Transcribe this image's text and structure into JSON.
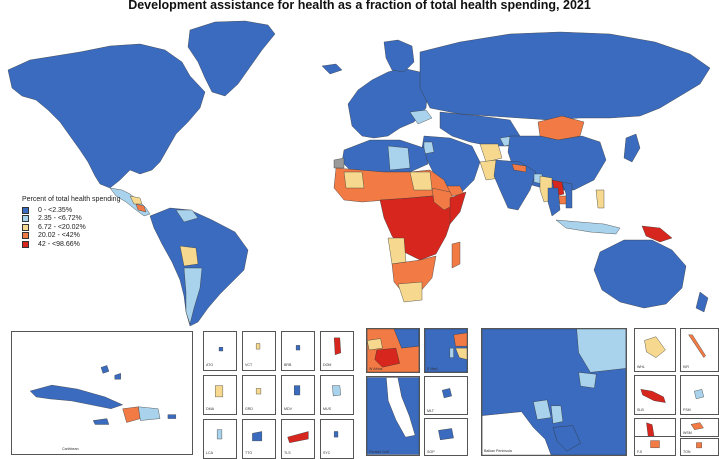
{
  "title": "Development assistance for health as a fraction of total health spending, 2021",
  "legend": {
    "title": "Percent of total health spending",
    "items": [
      {
        "label": "0 - <2.35%",
        "color": "#3a6bbf"
      },
      {
        "label": "2.35 - <6.72%",
        "color": "#a9d3ec"
      },
      {
        "label": "6.72 - <20.02%",
        "color": "#f6d98e"
      },
      {
        "label": "20.02 - <42%",
        "color": "#f27a45"
      },
      {
        "label": "42 - <98.66%",
        "color": "#d7261e"
      }
    ]
  },
  "insets": {
    "caribbean": "Caribbean",
    "small": [
      "ATG",
      "VCT",
      "BRB",
      "DOM",
      "DMA",
      "GRD",
      "MDV",
      "MUS",
      "LCA",
      "TTO",
      "TLS",
      "SYC"
    ],
    "w_africa": "W Africa",
    "e_med": "E Med.",
    "persian_gulf": "Persian Gulf",
    "mlt": "MLT",
    "sgp": "SGP",
    "balkan": "Balkan Peninsula",
    "pacific": [
      "WHL",
      "KIR",
      "SLB",
      "FSM",
      "VUT",
      "WSM",
      "FJI",
      "TON"
    ]
  }
}
